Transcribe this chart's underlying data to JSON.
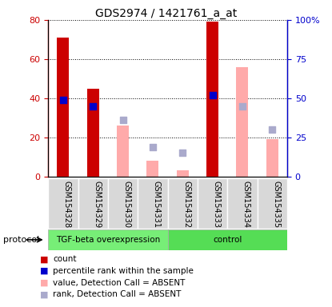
{
  "title": "GDS2974 / 1421761_a_at",
  "samples": [
    "GSM154328",
    "GSM154329",
    "GSM154330",
    "GSM154331",
    "GSM154332",
    "GSM154333",
    "GSM154334",
    "GSM154335"
  ],
  "groups": [
    "TGF-beta overexpression",
    "TGF-beta overexpression",
    "TGF-beta overexpression",
    "TGF-beta overexpression",
    "control",
    "control",
    "control",
    "control"
  ],
  "count_values": [
    71,
    45,
    null,
    null,
    null,
    79,
    null,
    null
  ],
  "percentile_values": [
    49,
    45,
    null,
    null,
    null,
    52,
    null,
    null
  ],
  "absent_value_bars": [
    null,
    null,
    26,
    8,
    3,
    null,
    56,
    19
  ],
  "absent_rank_dots": [
    null,
    null,
    36,
    19,
    15,
    null,
    45,
    30
  ],
  "left_ylim": [
    0,
    80
  ],
  "right_ylim": [
    0,
    100
  ],
  "left_yticks": [
    0,
    20,
    40,
    60,
    80
  ],
  "right_yticks": [
    0,
    25,
    50,
    75,
    100
  ],
  "right_yticklabels": [
    "0",
    "25",
    "50",
    "75",
    "100%"
  ],
  "color_count": "#cc0000",
  "color_percentile": "#0000cc",
  "color_absent_value": "#ffaaaa",
  "color_absent_rank": "#aaaacc",
  "group_color_1": "#77ee77",
  "group_color_2": "#55dd55",
  "bar_width": 0.4,
  "dot_size": 30,
  "protocol_label": "protocol",
  "legend_items": [
    {
      "label": "count",
      "color": "#cc0000"
    },
    {
      "label": "percentile rank within the sample",
      "color": "#0000cc"
    },
    {
      "label": "value, Detection Call = ABSENT",
      "color": "#ffaaaa"
    },
    {
      "label": "rank, Detection Call = ABSENT",
      "color": "#aaaacc"
    }
  ]
}
